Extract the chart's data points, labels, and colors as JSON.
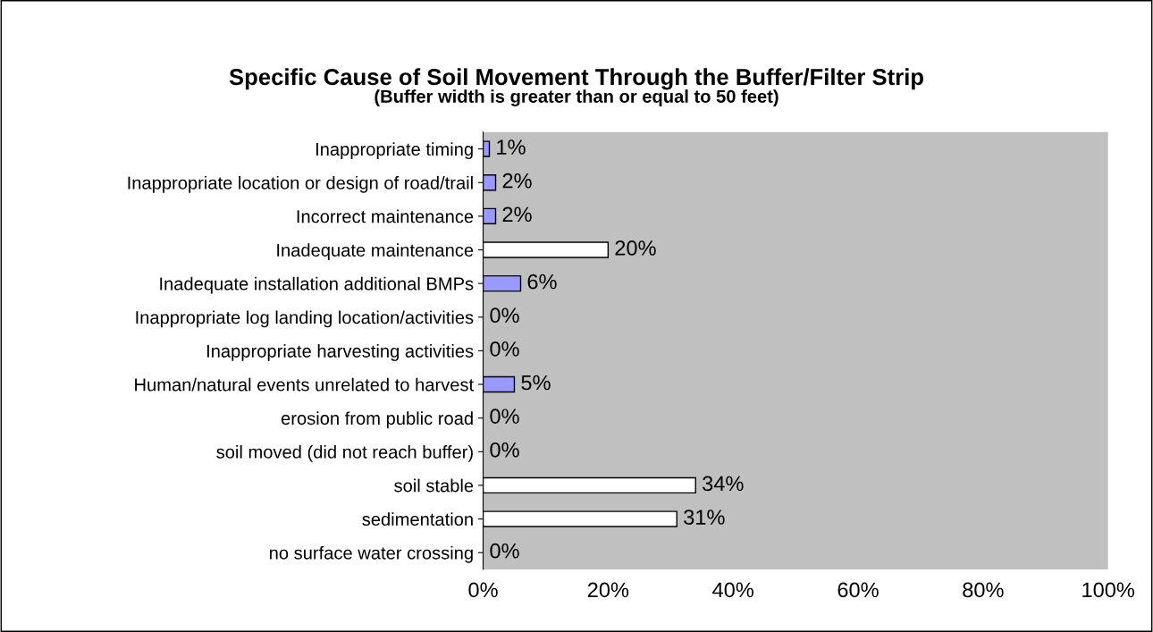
{
  "chart_data": {
    "type": "bar",
    "orientation": "horizontal",
    "title": "Specific Cause of Soil Movement Through the Buffer/Filter Strip",
    "subtitle": "(Buffer width is greater than or equal to 50 feet)",
    "categories": [
      "Inappropriate timing",
      "Inappropriate location or design of road/trail",
      "Incorrect maintenance",
      "Inadequate maintenance",
      "Inadequate installation additional BMPs",
      "Inappropriate log landing location/activities",
      "Inappropriate harvesting activities",
      "Human/natural events unrelated to harvest",
      "erosion from public road",
      "soil moved (did not reach buffer)",
      "soil stable",
      "sedimentation",
      "no surface water crossing"
    ],
    "values": [
      1,
      2,
      2,
      20,
      6,
      0,
      0,
      5,
      0,
      0,
      34,
      31,
      0
    ],
    "value_labels": [
      "1%",
      "2%",
      "2%",
      "20%",
      "6%",
      "0%",
      "0%",
      "5%",
      "0%",
      "0%",
      "34%",
      "31%",
      "0%"
    ],
    "colors": [
      "#9999ff",
      "#9999ff",
      "#9999ff",
      "#ffffff",
      "#9999ff",
      "#ffffff",
      "#ffffff",
      "#9999ff",
      "#ffffff",
      "#ffffff",
      "#ffffff",
      "#ffffff",
      "#ffffff"
    ],
    "xlim": [
      0,
      100
    ],
    "xticks": [
      {
        "value": 0,
        "label": "0%"
      },
      {
        "value": 20,
        "label": "20%"
      },
      {
        "value": 40,
        "label": "40%"
      },
      {
        "value": 60,
        "label": "60%"
      },
      {
        "value": 80,
        "label": "80%"
      },
      {
        "value": 100,
        "label": "100%"
      }
    ],
    "grid": false,
    "legend": false
  }
}
